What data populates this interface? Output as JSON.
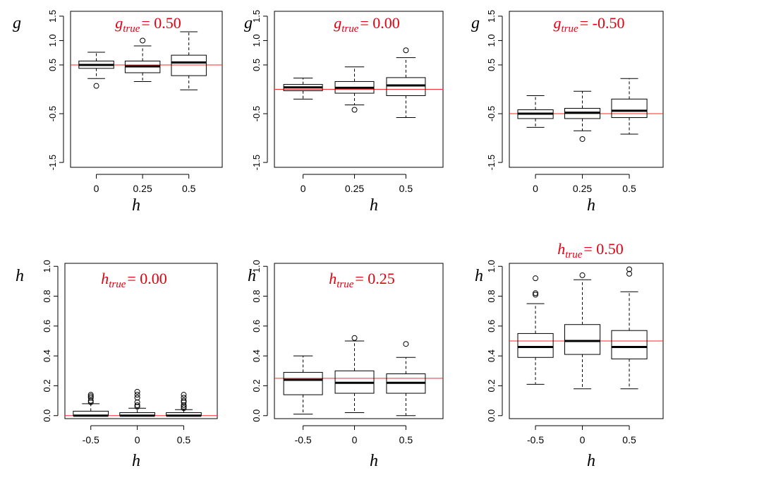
{
  "chart_data": [
    {
      "type": "boxplot",
      "title_symbol": "g",
      "title_subscript": "true",
      "title_value": "= 0.50",
      "ylabel": "g",
      "xlabel": "h",
      "categories": [
        "0",
        "0.25",
        "0.5"
      ],
      "ylim": [
        -1.6,
        1.6
      ],
      "yticks": [
        "-1.5",
        "-0.5",
        "0.5",
        "1.0",
        "1.5"
      ],
      "ytick_values": [
        -1.5,
        -0.5,
        0.5,
        1.0,
        1.5
      ],
      "reference": 0.5,
      "boxes": [
        {
          "min": 0.22,
          "q1": 0.43,
          "median": 0.5,
          "q3": 0.58,
          "max": 0.76,
          "outliers": [
            0.07
          ]
        },
        {
          "min": 0.16,
          "q1": 0.34,
          "median": 0.47,
          "q3": 0.58,
          "max": 0.89,
          "outliers": [
            1.0
          ]
        },
        {
          "min": -0.01,
          "q1": 0.28,
          "median": 0.55,
          "q3": 0.7,
          "max": 1.18,
          "outliers": []
        }
      ]
    },
    {
      "type": "boxplot",
      "title_symbol": "g",
      "title_subscript": "true",
      "title_value": "= 0.00",
      "ylabel": "g",
      "xlabel": "h",
      "categories": [
        "0",
        "0.25",
        "0.5"
      ],
      "ylim": [
        -1.6,
        1.6
      ],
      "yticks": [
        "-1.5",
        "-0.5",
        "0.5",
        "1.0",
        "1.5"
      ],
      "ytick_values": [
        -1.5,
        -0.5,
        0.5,
        1.0,
        1.5
      ],
      "reference": 0.0,
      "boxes": [
        {
          "min": -0.2,
          "q1": -0.03,
          "median": 0.04,
          "q3": 0.1,
          "max": 0.23,
          "outliers": []
        },
        {
          "min": -0.32,
          "q1": -0.08,
          "median": 0.03,
          "q3": 0.16,
          "max": 0.46,
          "outliers": [
            -0.42
          ]
        },
        {
          "min": -0.58,
          "q1": -0.13,
          "median": 0.08,
          "q3": 0.24,
          "max": 0.65,
          "outliers": [
            0.8
          ]
        }
      ]
    },
    {
      "type": "boxplot",
      "title_symbol": "g",
      "title_subscript": "true",
      "title_value": "= -0.50",
      "ylabel": "g",
      "xlabel": "h",
      "categories": [
        "0",
        "0.25",
        "0.5"
      ],
      "ylim": [
        -1.6,
        1.6
      ],
      "yticks": [
        "-1.5",
        "-0.5",
        "0.5",
        "1.0",
        "1.5"
      ],
      "ytick_values": [
        -1.5,
        -0.5,
        0.5,
        1.0,
        1.5
      ],
      "reference": -0.5,
      "boxes": [
        {
          "min": -0.78,
          "q1": -0.6,
          "median": -0.5,
          "q3": -0.42,
          "max": -0.13,
          "outliers": []
        },
        {
          "min": -0.85,
          "q1": -0.6,
          "median": -0.48,
          "q3": -0.39,
          "max": -0.04,
          "outliers": [
            -1.02
          ]
        },
        {
          "min": -0.92,
          "q1": -0.58,
          "median": -0.44,
          "q3": -0.2,
          "max": 0.22,
          "outliers": []
        }
      ]
    },
    {
      "type": "boxplot",
      "title_symbol": "h",
      "title_subscript": "true",
      "title_value": "= 0.00",
      "ylabel": "h",
      "xlabel": "h",
      "categories": [
        "-0.5",
        "0",
        "0.5"
      ],
      "ylim": [
        -0.02,
        1.02
      ],
      "yticks": [
        "0.0",
        "0.2",
        "0.4",
        "0.6",
        "0.8",
        "1.0"
      ],
      "ytick_values": [
        0.0,
        0.2,
        0.4,
        0.6,
        0.8,
        1.0
      ],
      "reference": 0.0,
      "boxes": [
        {
          "min": 0.0,
          "q1": 0.0,
          "median": 0.0,
          "q3": 0.03,
          "max": 0.08,
          "outliers": [
            0.09,
            0.1,
            0.12,
            0.13,
            0.14
          ]
        },
        {
          "min": 0.0,
          "q1": 0.0,
          "median": 0.0,
          "q3": 0.02,
          "max": 0.05,
          "outliers": [
            0.06,
            0.07,
            0.09,
            0.12,
            0.14,
            0.16
          ]
        },
        {
          "min": 0.0,
          "q1": 0.0,
          "median": 0.0,
          "q3": 0.02,
          "max": 0.04,
          "outliers": [
            0.05,
            0.06,
            0.07,
            0.09,
            0.1,
            0.12,
            0.14
          ]
        }
      ]
    },
    {
      "type": "boxplot",
      "title_symbol": "h",
      "title_subscript": "true",
      "title_value": "= 0.25",
      "ylabel": "h",
      "xlabel": "h",
      "categories": [
        "-0.5",
        "0",
        "0.5"
      ],
      "ylim": [
        -0.02,
        1.02
      ],
      "yticks": [
        "0.0",
        "0.2",
        "0.4",
        "0.6",
        "0.8",
        "1.0"
      ],
      "ytick_values": [
        0.0,
        0.2,
        0.4,
        0.6,
        0.8,
        1.0
      ],
      "reference": 0.25,
      "boxes": [
        {
          "min": 0.01,
          "q1": 0.14,
          "median": 0.24,
          "q3": 0.29,
          "max": 0.4,
          "outliers": []
        },
        {
          "min": 0.02,
          "q1": 0.15,
          "median": 0.22,
          "q3": 0.3,
          "max": 0.5,
          "outliers": [
            0.52
          ]
        },
        {
          "min": 0.0,
          "q1": 0.15,
          "median": 0.22,
          "q3": 0.28,
          "max": 0.39,
          "outliers": [
            0.48
          ]
        }
      ]
    },
    {
      "type": "boxplot",
      "title_symbol": "h",
      "title_subscript": "true",
      "title_value": "= 0.50",
      "ylabel": "h",
      "xlabel": "h",
      "categories": [
        "-0.5",
        "0",
        "0.5"
      ],
      "ylim": [
        -0.02,
        1.02
      ],
      "yticks": [
        "0.0",
        "0.2",
        "0.4",
        "0.6",
        "0.8",
        "1.0"
      ],
      "ytick_values": [
        0.0,
        0.2,
        0.4,
        0.6,
        0.8,
        1.0
      ],
      "reference": 0.5,
      "boxes": [
        {
          "min": 0.21,
          "q1": 0.39,
          "median": 0.46,
          "q3": 0.55,
          "max": 0.75,
          "outliers": [
            0.81,
            0.82,
            0.92
          ]
        },
        {
          "min": 0.18,
          "q1": 0.41,
          "median": 0.5,
          "q3": 0.61,
          "max": 0.91,
          "outliers": [
            0.94
          ]
        },
        {
          "min": 0.18,
          "q1": 0.38,
          "median": 0.46,
          "q3": 0.57,
          "max": 0.83,
          "outliers": [
            0.95,
            0.98
          ]
        }
      ]
    }
  ]
}
